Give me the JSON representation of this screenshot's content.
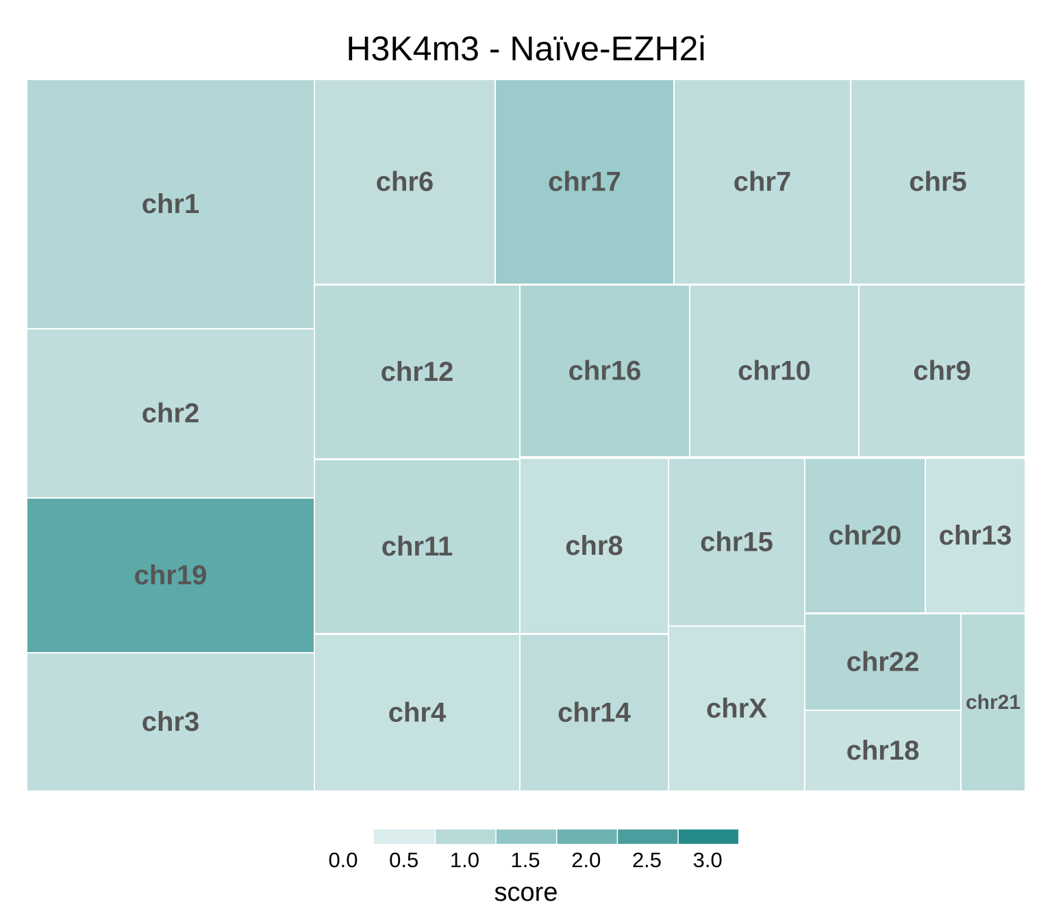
{
  "chart_data": {
    "type": "treemap",
    "title": "H3K4m3 - Naïve-EZH2i",
    "legend": {
      "title": "score",
      "position": "bottom",
      "colors": [
        "#dbecec",
        "#b7d9d8",
        "#92c6c5",
        "#6eb3b1",
        "#4a9f9e",
        "#268b8a"
      ],
      "ticks": [
        "0.0",
        "0.5",
        "1.0",
        "1.5",
        "2.0",
        "2.5",
        "3.0"
      ],
      "range": [
        0,
        3
      ]
    },
    "tiles": [
      {
        "label": "chr1",
        "score": 0.67
      },
      {
        "label": "chr2",
        "score": 0.46
      },
      {
        "label": "chr19",
        "score": 2.1
      },
      {
        "label": "chr3",
        "score": 0.46
      },
      {
        "label": "chr6",
        "score": 0.44
      },
      {
        "label": "chr17",
        "score": 1.05
      },
      {
        "label": "chr7",
        "score": 0.46
      },
      {
        "label": "chr5",
        "score": 0.46
      },
      {
        "label": "chr12",
        "score": 0.56
      },
      {
        "label": "chr16",
        "score": 0.76
      },
      {
        "label": "chr10",
        "score": 0.46
      },
      {
        "label": "chr9",
        "score": 0.46
      },
      {
        "label": "chr11",
        "score": 0.56
      },
      {
        "label": "chr8",
        "score": 0.36
      },
      {
        "label": "chr15",
        "score": 0.46
      },
      {
        "label": "chr20",
        "score": 0.67
      },
      {
        "label": "chr13",
        "score": 0.3
      },
      {
        "label": "chr4",
        "score": 0.36
      },
      {
        "label": "chr14",
        "score": 0.5
      },
      {
        "label": "chrX",
        "score": 0.3
      },
      {
        "label": "chr22",
        "score": 0.67
      },
      {
        "label": "chr18",
        "score": 0.33
      },
      {
        "label": "chr21",
        "score": 0.56
      }
    ]
  }
}
